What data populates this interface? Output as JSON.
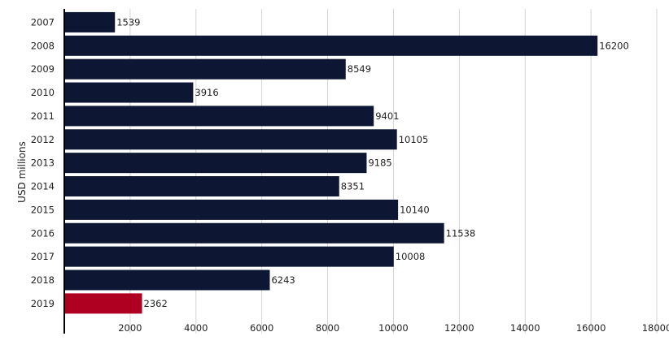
{
  "chart_data": {
    "type": "bar",
    "orientation": "horizontal",
    "categories": [
      "2007",
      "2008",
      "2009",
      "2010",
      "2011",
      "2012",
      "2013",
      "2014",
      "2015",
      "2016",
      "2017",
      "2018",
      "2019"
    ],
    "values": [
      1539,
      16200,
      8549,
      3916,
      9401,
      10105,
      9185,
      8351,
      10140,
      11538,
      10008,
      6243,
      2362
    ],
    "title": "",
    "xlabel": "",
    "ylabel": "USD millions",
    "xlim": [
      0,
      18000
    ],
    "xticks": [
      "2000",
      "4000",
      "6000",
      "8000",
      "10000",
      "12000",
      "14000",
      "16000",
      "18000"
    ],
    "grid": "vertical",
    "legend": "none",
    "bar_color": "#0d1633",
    "highlight_color": "#b00022",
    "highlight_category": "2019"
  }
}
